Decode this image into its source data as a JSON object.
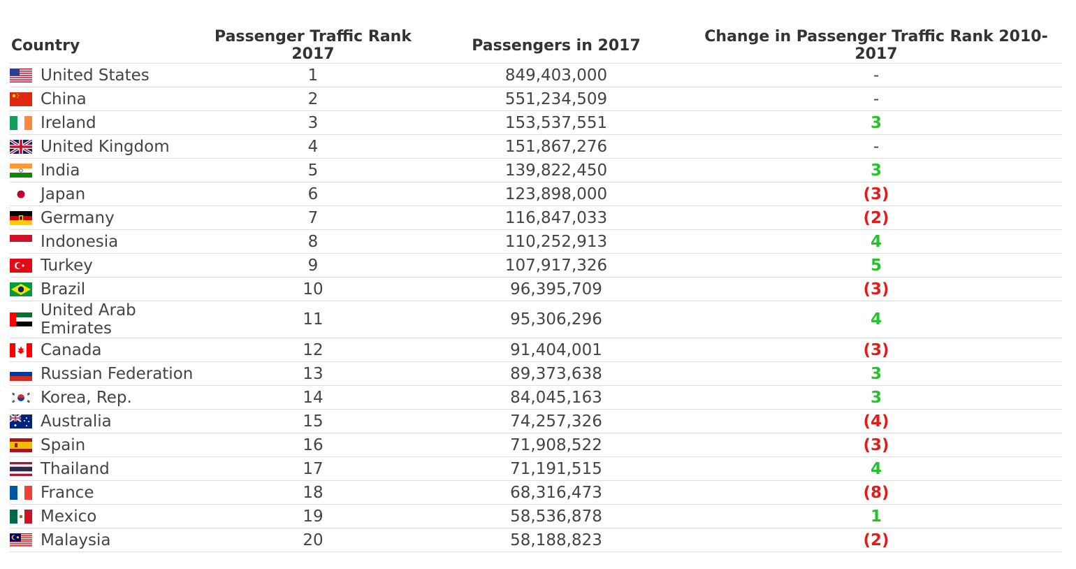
{
  "chart_data": {
    "type": "table",
    "columns": [
      "Country",
      "Passenger Traffic Rank 2017",
      "Passengers in 2017",
      "Change in Passenger Traffic Rank 2010-2017"
    ],
    "colors": {
      "positive": "#22c42a",
      "negative": "#e31b1b",
      "neutral": "#444444"
    },
    "rows": [
      {
        "country": "United States",
        "flag": "us-flag-icon",
        "rank": "1",
        "passengers": "849,403,000",
        "change": "-",
        "sign": "none"
      },
      {
        "country": "China",
        "flag": "china-flag-icon",
        "rank": "2",
        "passengers": "551,234,509",
        "change": "-",
        "sign": "none"
      },
      {
        "country": "Ireland",
        "flag": "ireland-flag-icon",
        "rank": "3",
        "passengers": "153,537,551",
        "change": "3",
        "sign": "pos"
      },
      {
        "country": "United Kingdom",
        "flag": "uk-flag-icon",
        "rank": "4",
        "passengers": "151,867,276",
        "change": "-",
        "sign": "none"
      },
      {
        "country": "India",
        "flag": "india-flag-icon",
        "rank": "5",
        "passengers": "139,822,450",
        "change": "3",
        "sign": "pos"
      },
      {
        "country": "Japan",
        "flag": "japan-flag-icon",
        "rank": "6",
        "passengers": "123,898,000",
        "change": "(3)",
        "sign": "neg"
      },
      {
        "country": "Germany",
        "flag": "germany-flag-icon",
        "rank": "7",
        "passengers": "116,847,033",
        "change": "(2)",
        "sign": "neg"
      },
      {
        "country": "Indonesia",
        "flag": "indonesia-flag-icon",
        "rank": "8",
        "passengers": "110,252,913",
        "change": "4",
        "sign": "pos"
      },
      {
        "country": "Turkey",
        "flag": "turkey-flag-icon",
        "rank": "9",
        "passengers": "107,917,326",
        "change": "5",
        "sign": "pos"
      },
      {
        "country": "Brazil",
        "flag": "brazil-flag-icon",
        "rank": "10",
        "passengers": "96,395,709",
        "change": "(3)",
        "sign": "neg"
      },
      {
        "country": "United Arab Emirates",
        "flag": "uae-flag-icon",
        "rank": "11",
        "passengers": "95,306,296",
        "change": "4",
        "sign": "pos"
      },
      {
        "country": "Canada",
        "flag": "canada-flag-icon",
        "rank": "12",
        "passengers": "91,404,001",
        "change": "(3)",
        "sign": "neg"
      },
      {
        "country": "Russian Federation",
        "flag": "russia-flag-icon",
        "rank": "13",
        "passengers": "89,373,638",
        "change": "3",
        "sign": "pos"
      },
      {
        "country": "Korea, Rep.",
        "flag": "korea-flag-icon",
        "rank": "14",
        "passengers": "84,045,163",
        "change": "3",
        "sign": "pos"
      },
      {
        "country": "Australia",
        "flag": "australia-flag-icon",
        "rank": "15",
        "passengers": "74,257,326",
        "change": "(4)",
        "sign": "neg"
      },
      {
        "country": "Spain",
        "flag": "spain-flag-icon",
        "rank": "16",
        "passengers": "71,908,522",
        "change": "(3)",
        "sign": "neg"
      },
      {
        "country": "Thailand",
        "flag": "thailand-flag-icon",
        "rank": "17",
        "passengers": "71,191,515",
        "change": "4",
        "sign": "pos"
      },
      {
        "country": "France",
        "flag": "france-flag-icon",
        "rank": "18",
        "passengers": "68,316,473",
        "change": "(8)",
        "sign": "neg"
      },
      {
        "country": "Mexico",
        "flag": "mexico-flag-icon",
        "rank": "19",
        "passengers": "58,536,878",
        "change": "1",
        "sign": "pos"
      },
      {
        "country": "Malaysia",
        "flag": "malaysia-flag-icon",
        "rank": "20",
        "passengers": "58,188,823",
        "change": "(2)",
        "sign": "neg"
      }
    ]
  }
}
